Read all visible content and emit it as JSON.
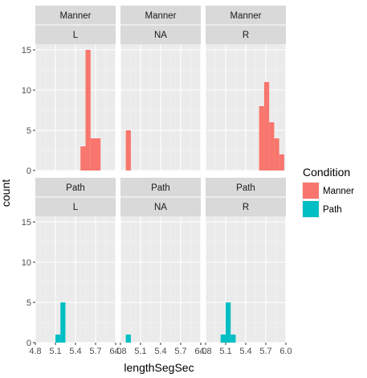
{
  "chart_data": {
    "type": "histogram",
    "xlabel": "lengthSegSec",
    "ylabel": "count",
    "xlim": [
      4.8,
      6.0
    ],
    "ylim": [
      0,
      15.7
    ],
    "binwidth": 0.075,
    "x_ticks": [
      "4.8",
      "5.1",
      "5.4",
      "5.7",
      "6.0"
    ],
    "y_ticks": [
      0,
      5,
      10,
      15
    ],
    "grid": true,
    "legend": {
      "title": "Condition",
      "position": "right",
      "entries": [
        {
          "name": "Manner",
          "color": "#F8766D"
        },
        {
          "name": "Path",
          "color": "#00BFC4"
        }
      ]
    },
    "facet_rows": [
      "Manner",
      "Path"
    ],
    "facet_cols": [
      "L",
      "NA",
      "R"
    ],
    "panels": [
      {
        "row": "Manner",
        "col": "L",
        "fill": "#F8766D",
        "bins": [
          {
            "x0": 5.475,
            "x1": 5.55,
            "count": 3
          },
          {
            "x0": 5.55,
            "x1": 5.625,
            "count": 15
          },
          {
            "x0": 5.625,
            "x1": 5.7,
            "count": 4
          },
          {
            "x0": 5.7,
            "x1": 5.775,
            "count": 4
          }
        ]
      },
      {
        "row": "Manner",
        "col": "NA",
        "fill": "#F8766D",
        "bins": [
          {
            "x0": 4.88,
            "x1": 4.955,
            "count": 5
          }
        ]
      },
      {
        "row": "Manner",
        "col": "R",
        "fill": "#F8766D",
        "bins": [
          {
            "x0": 5.6,
            "x1": 5.675,
            "count": 8
          },
          {
            "x0": 5.675,
            "x1": 5.75,
            "count": 11
          },
          {
            "x0": 5.75,
            "x1": 5.825,
            "count": 6
          },
          {
            "x0": 5.825,
            "x1": 5.9,
            "count": 4
          },
          {
            "x0": 5.9,
            "x1": 5.975,
            "count": 2
          }
        ]
      },
      {
        "row": "Path",
        "col": "L",
        "fill": "#00BFC4",
        "bins": [
          {
            "x0": 5.1,
            "x1": 5.175,
            "count": 1
          },
          {
            "x0": 5.175,
            "x1": 5.25,
            "count": 5
          }
        ]
      },
      {
        "row": "Path",
        "col": "NA",
        "fill": "#00BFC4",
        "bins": [
          {
            "x0": 4.88,
            "x1": 4.955,
            "count": 1
          }
        ]
      },
      {
        "row": "Path",
        "col": "R",
        "fill": "#00BFC4",
        "bins": [
          {
            "x0": 5.025,
            "x1": 5.1,
            "count": 1
          },
          {
            "x0": 5.1,
            "x1": 5.175,
            "count": 5
          },
          {
            "x0": 5.175,
            "x1": 5.25,
            "count": 1
          }
        ]
      }
    ]
  }
}
